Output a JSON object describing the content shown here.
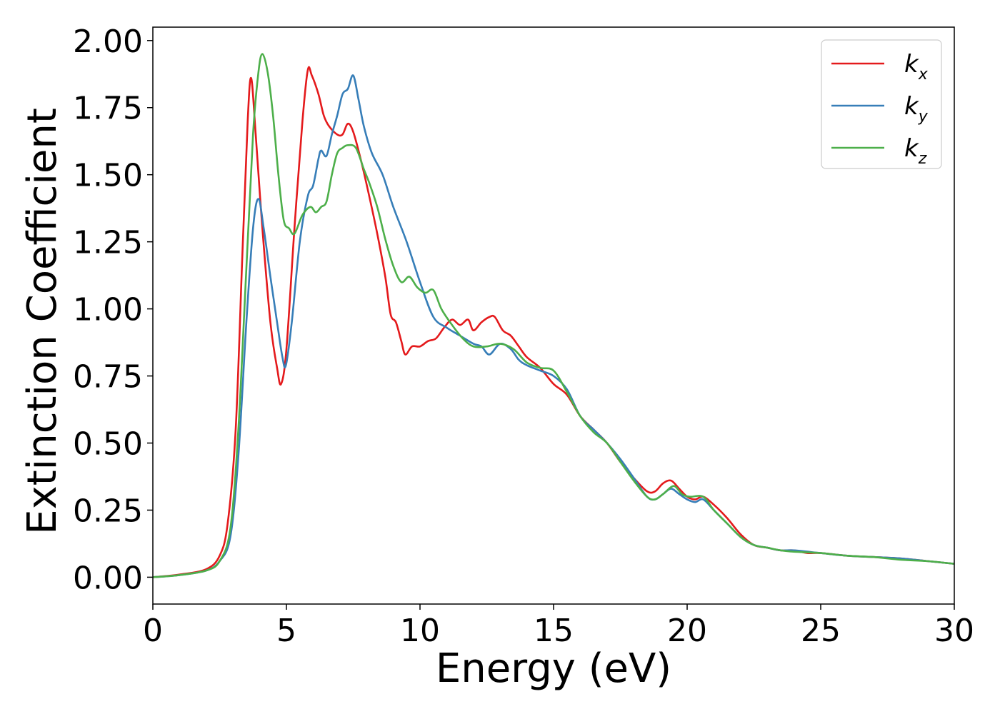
{
  "chart_data": {
    "type": "line",
    "title": "",
    "xlabel": "Energy (eV)",
    "ylabel": "Extinction Coefficient",
    "xlim": [
      0,
      30
    ],
    "ylim": [
      -0.1,
      2.05
    ],
    "xticks": [
      0,
      5,
      10,
      15,
      20,
      25,
      30
    ],
    "xtick_labels": [
      "0",
      "5",
      "10",
      "15",
      "20",
      "25",
      "30"
    ],
    "yticks": [
      0,
      0.25,
      0.5,
      0.75,
      1.0,
      1.25,
      1.5,
      1.75,
      2.0
    ],
    "ytick_labels": [
      "0.00",
      "0.25",
      "0.50",
      "0.75",
      "1.00",
      "1.25",
      "1.50",
      "1.75",
      "2.00"
    ],
    "grid": false,
    "legend_position": "top-right",
    "series": [
      {
        "name": "k",
        "subscript": "x",
        "color": "#e41a1c",
        "points": [
          [
            0,
            0
          ],
          [
            1,
            0.01
          ],
          [
            2,
            0.03
          ],
          [
            2.5,
            0.08
          ],
          [
            2.8,
            0.2
          ],
          [
            3.1,
            0.55
          ],
          [
            3.35,
            1.2
          ],
          [
            3.55,
            1.7
          ],
          [
            3.68,
            1.86
          ],
          [
            3.85,
            1.65
          ],
          [
            4.1,
            1.3
          ],
          [
            4.4,
            0.95
          ],
          [
            4.65,
            0.78
          ],
          [
            4.8,
            0.72
          ],
          [
            5.0,
            0.85
          ],
          [
            5.3,
            1.3
          ],
          [
            5.6,
            1.7
          ],
          [
            5.8,
            1.89
          ],
          [
            5.95,
            1.87
          ],
          [
            6.2,
            1.8
          ],
          [
            6.4,
            1.72
          ],
          [
            6.6,
            1.68
          ],
          [
            6.9,
            1.65
          ],
          [
            7.1,
            1.65
          ],
          [
            7.3,
            1.69
          ],
          [
            7.5,
            1.66
          ],
          [
            7.8,
            1.55
          ],
          [
            8.1,
            1.42
          ],
          [
            8.4,
            1.28
          ],
          [
            8.7,
            1.12
          ],
          [
            8.9,
            0.98
          ],
          [
            9.1,
            0.95
          ],
          [
            9.3,
            0.88
          ],
          [
            9.45,
            0.83
          ],
          [
            9.7,
            0.86
          ],
          [
            10.0,
            0.86
          ],
          [
            10.3,
            0.88
          ],
          [
            10.6,
            0.89
          ],
          [
            10.9,
            0.93
          ],
          [
            11.2,
            0.96
          ],
          [
            11.5,
            0.94
          ],
          [
            11.8,
            0.96
          ],
          [
            12.0,
            0.92
          ],
          [
            12.3,
            0.95
          ],
          [
            12.6,
            0.97
          ],
          [
            12.8,
            0.97
          ],
          [
            13.1,
            0.92
          ],
          [
            13.4,
            0.9
          ],
          [
            13.7,
            0.86
          ],
          [
            14.0,
            0.82
          ],
          [
            14.5,
            0.78
          ],
          [
            15.0,
            0.72
          ],
          [
            15.5,
            0.68
          ],
          [
            16.0,
            0.6
          ],
          [
            16.5,
            0.55
          ],
          [
            17.0,
            0.5
          ],
          [
            17.5,
            0.43
          ],
          [
            18.0,
            0.37
          ],
          [
            18.5,
            0.32
          ],
          [
            18.8,
            0.32
          ],
          [
            19.1,
            0.35
          ],
          [
            19.4,
            0.36
          ],
          [
            19.7,
            0.33
          ],
          [
            20.0,
            0.3
          ],
          [
            20.3,
            0.29
          ],
          [
            20.6,
            0.3
          ],
          [
            21.0,
            0.27
          ],
          [
            21.5,
            0.22
          ],
          [
            22.0,
            0.16
          ],
          [
            22.5,
            0.12
          ],
          [
            23.0,
            0.11
          ],
          [
            23.5,
            0.1
          ],
          [
            24.0,
            0.1
          ],
          [
            24.5,
            0.09
          ],
          [
            25.0,
            0.09
          ],
          [
            26.0,
            0.08
          ],
          [
            27.0,
            0.075
          ],
          [
            28.0,
            0.07
          ],
          [
            29.0,
            0.06
          ],
          [
            30.0,
            0.05
          ]
        ]
      },
      {
        "name": "k",
        "subscript": "y",
        "color": "#377eb8",
        "points": [
          [
            0,
            0
          ],
          [
            1,
            0.008
          ],
          [
            2,
            0.025
          ],
          [
            2.5,
            0.06
          ],
          [
            2.9,
            0.15
          ],
          [
            3.2,
            0.45
          ],
          [
            3.5,
            0.95
          ],
          [
            3.75,
            1.3
          ],
          [
            3.95,
            1.41
          ],
          [
            4.15,
            1.3
          ],
          [
            4.4,
            1.12
          ],
          [
            4.65,
            0.95
          ],
          [
            4.85,
            0.82
          ],
          [
            4.98,
            0.79
          ],
          [
            5.2,
            0.95
          ],
          [
            5.5,
            1.25
          ],
          [
            5.8,
            1.42
          ],
          [
            6.0,
            1.46
          ],
          [
            6.2,
            1.56
          ],
          [
            6.3,
            1.59
          ],
          [
            6.5,
            1.57
          ],
          [
            6.7,
            1.65
          ],
          [
            6.9,
            1.72
          ],
          [
            7.1,
            1.8
          ],
          [
            7.3,
            1.82
          ],
          [
            7.5,
            1.87
          ],
          [
            7.7,
            1.78
          ],
          [
            7.9,
            1.68
          ],
          [
            8.2,
            1.58
          ],
          [
            8.6,
            1.5
          ],
          [
            9.0,
            1.38
          ],
          [
            9.5,
            1.25
          ],
          [
            10.0,
            1.1
          ],
          [
            10.5,
            0.97
          ],
          [
            11.0,
            0.93
          ],
          [
            11.5,
            0.9
          ],
          [
            12.0,
            0.87
          ],
          [
            12.3,
            0.86
          ],
          [
            12.6,
            0.83
          ],
          [
            13.0,
            0.87
          ],
          [
            13.4,
            0.85
          ],
          [
            13.7,
            0.81
          ],
          [
            14.0,
            0.79
          ],
          [
            14.5,
            0.77
          ],
          [
            15.0,
            0.75
          ],
          [
            15.5,
            0.7
          ],
          [
            16.0,
            0.6
          ],
          [
            16.5,
            0.55
          ],
          [
            17.0,
            0.5
          ],
          [
            17.5,
            0.44
          ],
          [
            18.0,
            0.37
          ],
          [
            18.5,
            0.3
          ],
          [
            18.8,
            0.29
          ],
          [
            19.1,
            0.31
          ],
          [
            19.4,
            0.33
          ],
          [
            19.7,
            0.31
          ],
          [
            20.0,
            0.29
          ],
          [
            20.3,
            0.28
          ],
          [
            20.6,
            0.29
          ],
          [
            21.0,
            0.25
          ],
          [
            21.5,
            0.2
          ],
          [
            22.0,
            0.15
          ],
          [
            22.5,
            0.12
          ],
          [
            23.0,
            0.11
          ],
          [
            23.5,
            0.1
          ],
          [
            24.0,
            0.1
          ],
          [
            25.0,
            0.09
          ],
          [
            26.0,
            0.08
          ],
          [
            27.0,
            0.075
          ],
          [
            28.0,
            0.07
          ],
          [
            29.0,
            0.06
          ],
          [
            30.0,
            0.05
          ]
        ]
      },
      {
        "name": "k",
        "subscript": "z",
        "color": "#4daf4a",
        "points": [
          [
            0,
            0
          ],
          [
            1,
            0.008
          ],
          [
            2,
            0.025
          ],
          [
            2.5,
            0.06
          ],
          [
            2.9,
            0.18
          ],
          [
            3.2,
            0.55
          ],
          [
            3.5,
            1.15
          ],
          [
            3.75,
            1.65
          ],
          [
            3.95,
            1.88
          ],
          [
            4.1,
            1.95
          ],
          [
            4.3,
            1.88
          ],
          [
            4.5,
            1.72
          ],
          [
            4.7,
            1.5
          ],
          [
            4.9,
            1.33
          ],
          [
            5.1,
            1.3
          ],
          [
            5.3,
            1.28
          ],
          [
            5.6,
            1.35
          ],
          [
            5.9,
            1.38
          ],
          [
            6.1,
            1.36
          ],
          [
            6.3,
            1.38
          ],
          [
            6.5,
            1.4
          ],
          [
            6.7,
            1.5
          ],
          [
            6.9,
            1.58
          ],
          [
            7.1,
            1.6
          ],
          [
            7.3,
            1.61
          ],
          [
            7.6,
            1.6
          ],
          [
            7.9,
            1.52
          ],
          [
            8.1,
            1.47
          ],
          [
            8.4,
            1.38
          ],
          [
            8.7,
            1.26
          ],
          [
            9.0,
            1.16
          ],
          [
            9.3,
            1.1
          ],
          [
            9.6,
            1.12
          ],
          [
            9.9,
            1.08
          ],
          [
            10.2,
            1.06
          ],
          [
            10.5,
            1.07
          ],
          [
            10.8,
            1.0
          ],
          [
            11.2,
            0.94
          ],
          [
            11.6,
            0.89
          ],
          [
            12.0,
            0.86
          ],
          [
            12.5,
            0.86
          ],
          [
            13.0,
            0.87
          ],
          [
            13.5,
            0.85
          ],
          [
            14.0,
            0.8
          ],
          [
            14.5,
            0.78
          ],
          [
            15.0,
            0.77
          ],
          [
            15.5,
            0.69
          ],
          [
            16.0,
            0.6
          ],
          [
            16.5,
            0.54
          ],
          [
            17.0,
            0.5
          ],
          [
            17.5,
            0.43
          ],
          [
            18.0,
            0.36
          ],
          [
            18.5,
            0.3
          ],
          [
            18.8,
            0.29
          ],
          [
            19.1,
            0.31
          ],
          [
            19.5,
            0.34
          ],
          [
            19.8,
            0.31
          ],
          [
            20.1,
            0.3
          ],
          [
            20.6,
            0.3
          ],
          [
            21.0,
            0.25
          ],
          [
            21.5,
            0.2
          ],
          [
            22.0,
            0.15
          ],
          [
            22.5,
            0.12
          ],
          [
            23.0,
            0.11
          ],
          [
            23.5,
            0.1
          ],
          [
            24.0,
            0.095
          ],
          [
            25.0,
            0.09
          ],
          [
            26.0,
            0.08
          ],
          [
            27.0,
            0.075
          ],
          [
            28.0,
            0.065
          ],
          [
            29.0,
            0.06
          ],
          [
            30.0,
            0.05
          ]
        ]
      }
    ]
  }
}
